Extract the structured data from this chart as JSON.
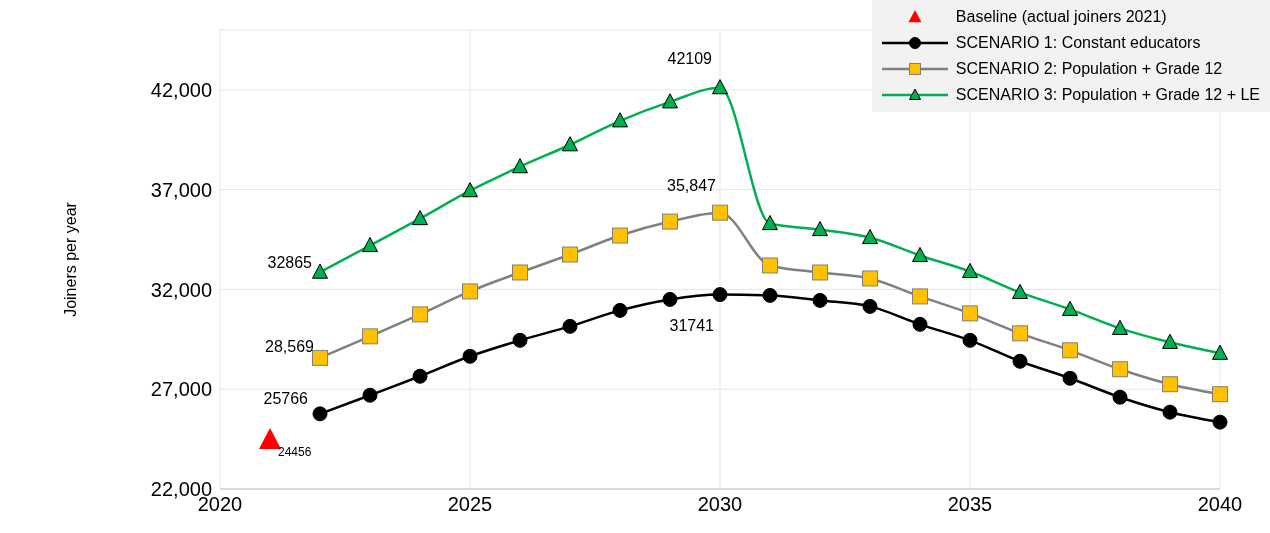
{
  "chart_data": {
    "type": "line",
    "ylabel": "Joiners per year",
    "xlim": [
      2020,
      2040
    ],
    "xticks": [
      2020,
      2025,
      2030,
      2035,
      2040
    ],
    "ylim": [
      22000,
      45000
    ],
    "yticks": [
      {
        "value": 22000,
        "label": "22,000"
      },
      {
        "value": 27000,
        "label": "27,000"
      },
      {
        "value": 32000,
        "label": "32,000"
      },
      {
        "value": 37000,
        "label": "37,000"
      },
      {
        "value": 42000,
        "label": "42,000"
      }
    ],
    "grid": true,
    "legend": "top right",
    "series": [
      {
        "name": "Baseline (actual joiners 2021)",
        "type": "scatter",
        "marker": "triangle",
        "color": "#ff0000",
        "x": [
          2021
        ],
        "values": [
          24456
        ]
      },
      {
        "name": "SCENARIO 1: Constant educators",
        "marker": "circle",
        "color": "#000000",
        "x": [
          2022,
          2023,
          2024,
          2025,
          2026,
          2027,
          2028,
          2029,
          2030,
          2031,
          2032,
          2033,
          2034,
          2035,
          2036,
          2037,
          2038,
          2039,
          2040
        ],
        "values": [
          25766,
          26700,
          27650,
          28650,
          29450,
          30150,
          30950,
          31500,
          31741,
          31700,
          31450,
          31150,
          30250,
          29450,
          28400,
          27550,
          26600,
          25850,
          25350
        ]
      },
      {
        "name": "SCENARIO 2: Population + Grade 12",
        "marker": "square",
        "color": "#808080",
        "x": [
          2022,
          2023,
          2024,
          2025,
          2026,
          2027,
          2028,
          2029,
          2030,
          2031,
          2032,
          2033,
          2034,
          2035,
          2036,
          2037,
          2038,
          2039,
          2040
        ],
        "values": [
          28569,
          29650,
          30750,
          31900,
          32850,
          33750,
          34700,
          35400,
          35847,
          33200,
          32850,
          32550,
          31650,
          30800,
          29800,
          28950,
          28000,
          27250,
          26750
        ]
      },
      {
        "name": "SCENARIO 3: Population + Grade 12 + LE",
        "marker": "triangle",
        "color": "#00b050",
        "x": [
          2022,
          2023,
          2024,
          2025,
          2026,
          2027,
          2028,
          2029,
          2030,
          2031,
          2032,
          2033,
          2034,
          2035,
          2036,
          2037,
          2038,
          2039,
          2040
        ],
        "values": [
          32865,
          34200,
          35550,
          36950,
          38150,
          39250,
          40450,
          41400,
          42109,
          35300,
          35000,
          34600,
          33700,
          32900,
          31850,
          31000,
          30050,
          29350,
          28800
        ]
      }
    ],
    "annotations": [
      {
        "text": "24456",
        "x": 2021,
        "y": 24456
      },
      {
        "text": "25766",
        "x": 2022,
        "y": 25766
      },
      {
        "text": "28,569",
        "x": 2022,
        "y": 28569
      },
      {
        "text": "32865",
        "x": 2022,
        "y": 32865
      },
      {
        "text": "42109",
        "x": 2030,
        "y": 42109
      },
      {
        "text": "35,847",
        "x": 2030,
        "y": 35847
      },
      {
        "text": "31741",
        "x": 2030,
        "y": 31741
      }
    ]
  }
}
